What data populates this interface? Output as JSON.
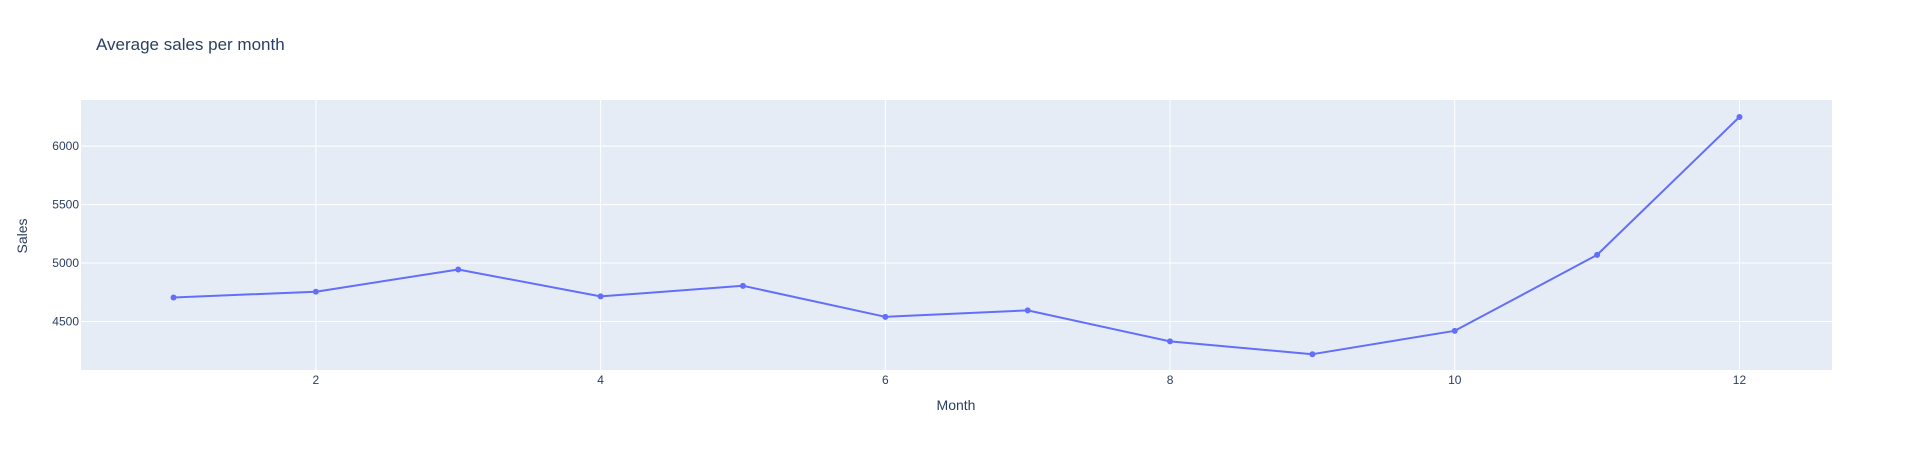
{
  "chart_data": {
    "type": "line",
    "title": "Average sales per month",
    "xlabel": "Month",
    "ylabel": "Sales",
    "x": [
      1,
      2,
      3,
      4,
      5,
      6,
      7,
      8,
      9,
      10,
      11,
      12
    ],
    "series": [
      {
        "values": [
          4705,
          4755,
          4945,
          4715,
          4805,
          4540,
          4595,
          4330,
          4220,
          4420,
          5070,
          6250
        ]
      }
    ],
    "xlim": [
      0.35,
      12.65
    ],
    "ylim": [
      4085,
      6395
    ],
    "xticks": [
      2,
      4,
      6,
      8,
      10,
      12
    ],
    "yticks": [
      4500,
      5000,
      5500,
      6000
    ],
    "grid": true,
    "colors": {
      "plot_bg": "#E5ECF6",
      "grid": "#ffffff",
      "line": "#636EFA",
      "text": "#2a3f5f"
    }
  }
}
